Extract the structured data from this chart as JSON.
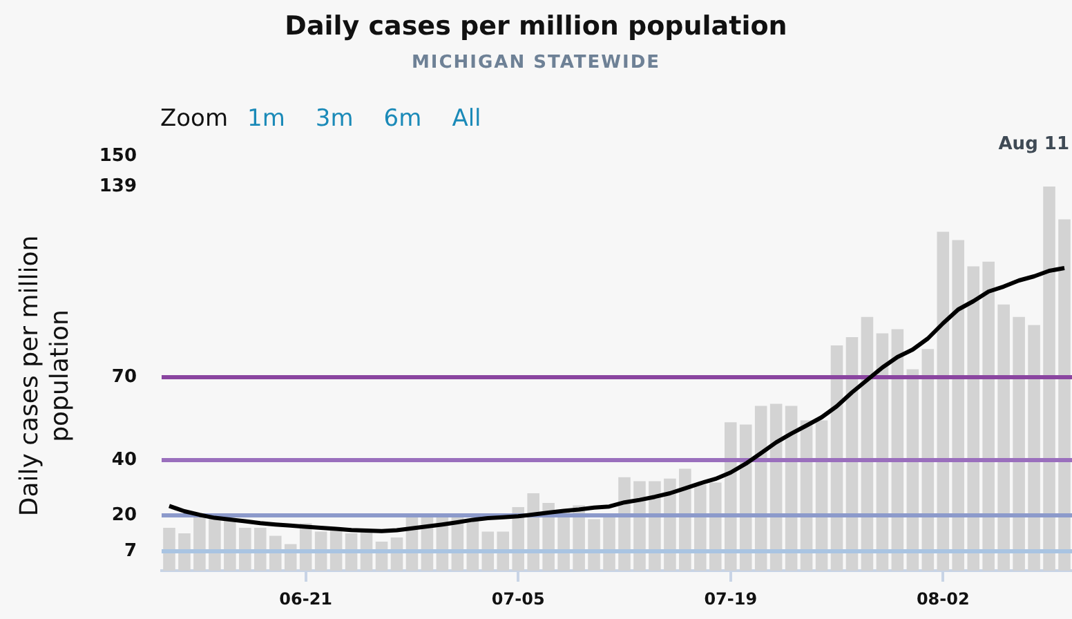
{
  "chart_data": {
    "type": "bar",
    "title": "Daily cases per million population",
    "subtitle": "MICHIGAN STATEWIDE",
    "ylabel": "Daily cases per million population",
    "annotations": [
      "Aug 11",
      "Zoom",
      "1m",
      "3m",
      "6m",
      "All"
    ],
    "x": [
      "--06-12",
      "--06-13",
      "--06-14",
      "--06-15",
      "--06-16",
      "--06-17",
      "--06-18",
      "--06-19",
      "--06-20",
      "--06-21",
      "--06-22",
      "--06-23",
      "--06-24",
      "--06-25",
      "--06-26",
      "--06-27",
      "--06-28",
      "--06-29",
      "--06-30",
      "--07-01",
      "--07-02",
      "--07-03",
      "--07-04",
      "--07-05",
      "--07-06",
      "--07-07",
      "--07-08",
      "--07-09",
      "--07-10",
      "--07-11",
      "--07-12",
      "--07-13",
      "--07-14",
      "--07-15",
      "--07-16",
      "--07-17",
      "--07-18",
      "--07-19",
      "--07-20",
      "--07-21",
      "--07-22",
      "--07-23",
      "--07-24",
      "--07-25",
      "--07-26",
      "--07-27",
      "--07-28",
      "--07-29",
      "--07-30",
      "--07-31",
      "--08-01",
      "--08-02",
      "--08-03",
      "--08-04",
      "--08-05",
      "--08-06",
      "--08-07",
      "--08-08",
      "--08-09",
      "--08-10"
    ],
    "series": [
      {
        "color": "#d3d3d3",
        "values": [
          15.5,
          13.5,
          19.8,
          19.8,
          18.1,
          15.5,
          15.5,
          12.6,
          9.6,
          17.1,
          14.1,
          15.5,
          13.5,
          14.1,
          10.5,
          12.0,
          19.8,
          19.8,
          19.8,
          19.8,
          18.8,
          14.1,
          14.1,
          23.0,
          28.0,
          24.5,
          21.5,
          23.6,
          18.6,
          20.6,
          33.8,
          32.4,
          32.4,
          33.3,
          36.9,
          31.1,
          31.9,
          53.7,
          52.9,
          59.6,
          60.4,
          59.6,
          54.4,
          54.4,
          81.5,
          84.5,
          91.8,
          85.9,
          87.4,
          72.9,
          80.2,
          122.6,
          119.6,
          110.1,
          111.8,
          96.3,
          91.8,
          88.9,
          139,
          127.1
        ]
      },
      {
        "type": "line",
        "color": "#000000",
        "values": [
          23.4,
          21.5,
          20.2,
          19.1,
          18.5,
          17.9,
          17.2,
          16.7,
          16.3,
          15.9,
          15.5,
          15.1,
          14.7,
          14.5,
          14.3,
          14.6,
          15.3,
          16.0,
          16.7,
          17.5,
          18.4,
          19.0,
          19.3,
          19.7,
          20.3,
          21.0,
          21.6,
          22.1,
          22.8,
          23.2,
          24.7,
          25.6,
          26.7,
          28.0,
          29.8,
          31.6,
          33.2,
          35.5,
          38.7,
          42.5,
          46.4,
          49.6,
          52.5,
          55.5,
          59.5,
          64.5,
          69.0,
          73.5,
          77.3,
          80.0,
          84.0,
          89.5,
          94.5,
          97.5,
          101.0,
          102.8,
          105.0,
          106.5,
          108.5,
          109.5
        ]
      }
    ],
    "xlim": [
      "--06-11T12:00",
      "--08-10T12:00"
    ],
    "xticks": [
      {
        "value": "--06-21",
        "label": "06-21"
      },
      {
        "value": "--07-05",
        "label": "07-05"
      },
      {
        "value": "--07-19",
        "label": "07-19"
      },
      {
        "value": "--08-02",
        "label": "08-02"
      }
    ],
    "ylim": [
      0,
      150
    ],
    "yticks": [
      7,
      20,
      40,
      70,
      139,
      150
    ],
    "ref_lines": [
      {
        "axis": "y",
        "value": 7,
        "color": "#a9c4e2"
      },
      {
        "axis": "y",
        "value": 20,
        "color": "#8c9acb"
      },
      {
        "axis": "y",
        "value": 40,
        "color": "#9a6fbd"
      },
      {
        "axis": "y",
        "value": 70,
        "color": "#8a45a0"
      }
    ],
    "grid": false,
    "legend": false,
    "line_style": "solid",
    "marker": "none"
  }
}
